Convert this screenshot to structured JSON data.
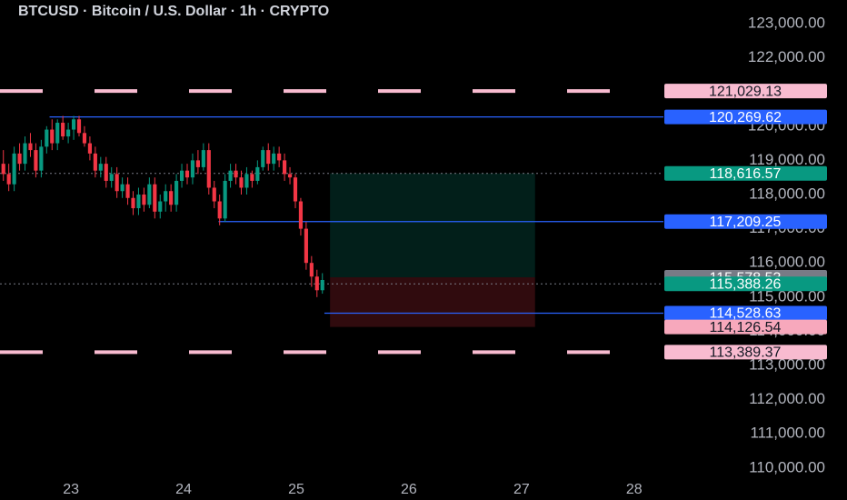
{
  "chart_data": {
    "type": "candlestick",
    "title": "BTCUSD · Bitcoin / U.S. Dollar · 1h · CRYPTO",
    "x": [
      22.4,
      22.448,
      22.496,
      22.544,
      22.592,
      22.64,
      22.688,
      22.736,
      22.784,
      22.832,
      22.88,
      22.928,
      22.976,
      23.024,
      23.072,
      23.12,
      23.168,
      23.216,
      23.264,
      23.312,
      23.36,
      23.408,
      23.456,
      23.504,
      23.552,
      23.6,
      23.648,
      23.696,
      23.744,
      23.792,
      23.84,
      23.888,
      23.936,
      23.984,
      24.032,
      24.08,
      24.128,
      24.176,
      24.224,
      24.272,
      24.32,
      24.368,
      24.416,
      24.464,
      24.512,
      24.56,
      24.608,
      24.656,
      24.704,
      24.752,
      24.8,
      24.848,
      24.896,
      24.944,
      24.992,
      25.04,
      25.088,
      25.136,
      25.184,
      25.232
    ],
    "open": [
      118900,
      118600,
      118300,
      119200,
      118900,
      119500,
      119300,
      118700,
      119400,
      119900,
      119500,
      120100,
      119700,
      119900,
      120200,
      119800,
      119500,
      119200,
      118700,
      118900,
      118400,
      118600,
      118100,
      118300,
      117900,
      117600,
      118000,
      117700,
      118300,
      117500,
      117800,
      118100,
      117700,
      118400,
      118700,
      118500,
      119000,
      118800,
      119300,
      118200,
      117800,
      117300,
      118400,
      118700,
      118500,
      118200,
      118600,
      118400,
      118800,
      119300,
      118900,
      119200,
      119000,
      118600,
      118500,
      117800,
      117000,
      116000,
      115600,
      115200
    ],
    "high": [
      119300,
      118900,
      119400,
      119500,
      119700,
      119800,
      119500,
      119600,
      120000,
      120200,
      120200,
      120300,
      120100,
      120300,
      120300,
      120000,
      119700,
      119400,
      119100,
      119100,
      118800,
      118800,
      118500,
      118500,
      118100,
      118200,
      118200,
      118500,
      118500,
      118000,
      118300,
      118300,
      118600,
      118900,
      118900,
      119200,
      119300,
      119500,
      119500,
      118400,
      118000,
      118600,
      118900,
      118900,
      118700,
      118800,
      118700,
      119000,
      119400,
      119500,
      119400,
      119400,
      119200,
      118800,
      118600,
      117900,
      117200,
      116200,
      115800,
      115700
    ],
    "low": [
      118400,
      118100,
      118100,
      118700,
      118700,
      119100,
      118500,
      118500,
      119200,
      119300,
      119300,
      119600,
      119500,
      119600,
      119700,
      119400,
      119000,
      118500,
      118500,
      118200,
      118200,
      117900,
      117900,
      117700,
      117400,
      117400,
      117500,
      117600,
      117300,
      117300,
      117500,
      117500,
      117500,
      118200,
      118300,
      118300,
      118600,
      118700,
      118000,
      117600,
      117100,
      117200,
      118200,
      118300,
      118000,
      118000,
      118200,
      118300,
      118700,
      118700,
      118700,
      118800,
      118400,
      118300,
      117600,
      116800,
      115800,
      115300,
      115000,
      115100
    ],
    "close": [
      118600,
      118300,
      119200,
      118900,
      119500,
      119300,
      118700,
      119400,
      119900,
      119500,
      120100,
      119700,
      119900,
      120200,
      119800,
      119500,
      119200,
      118700,
      118900,
      118400,
      118600,
      118100,
      118300,
      117900,
      117600,
      118000,
      117700,
      118300,
      117500,
      117800,
      118100,
      117700,
      118400,
      118700,
      118500,
      119000,
      118800,
      119300,
      118200,
      117800,
      117300,
      118400,
      118700,
      118500,
      118200,
      118600,
      118400,
      118800,
      119300,
      118900,
      119200,
      119000,
      118600,
      118500,
      117800,
      117000,
      116000,
      115600,
      115200,
      115500
    ],
    "up_color": "#089981",
    "down_color": "#f23645",
    "xlim": [
      22.37,
      28.3
    ],
    "xticks": [
      23,
      24,
      25,
      26,
      27,
      28
    ],
    "ylim": [
      109064,
      123691
    ],
    "yticks": [
      {
        "value": 110000,
        "label": "110,000.00"
      },
      {
        "value": 111000,
        "label": "111,000.00"
      },
      {
        "value": 112000,
        "label": "112,000.00"
      },
      {
        "value": 113000,
        "label": "113,000.00"
      },
      {
        "value": 114000,
        "label": "114,000.00"
      },
      {
        "value": 115000,
        "label": "115,000.00"
      },
      {
        "value": 116000,
        "label": "116,000.00"
      },
      {
        "value": 117000,
        "label": "117,000.00"
      },
      {
        "value": 118000,
        "label": "118,000.00"
      },
      {
        "value": 119000,
        "label": "119,000.00"
      },
      {
        "value": 120000,
        "label": "120,000.00"
      },
      {
        "value": 121000,
        "label": "121,000.00"
      },
      {
        "value": 122000,
        "label": "122,000.00"
      },
      {
        "value": 123000,
        "label": "123,000.00"
      }
    ],
    "levels": [
      {
        "value": 121029.13,
        "label": "121,029.13",
        "color": "#f8bbd0",
        "text_color": "#131722",
        "line": "dashed"
      },
      {
        "value": 120269.62,
        "label": "120,269.62",
        "color": "#2962ff",
        "text_color": "#ffffff",
        "line": "solid",
        "start": 22.81
      },
      {
        "value": 118616.57,
        "label": "118,616.57",
        "color": "#089981",
        "text_color": "#ffffff",
        "line": "dotted"
      },
      {
        "value": 117209.25,
        "label": "117,209.25",
        "color": "#2962ff",
        "text_color": "#ffffff",
        "line": "solid",
        "start": 24.31
      },
      {
        "value": 115578.53,
        "label": "115,578.53",
        "color": "#787b86",
        "text_color": "#ffffff",
        "line": "none"
      },
      {
        "value": 115388.26,
        "label": "115,388.26",
        "color": "#089981",
        "text_color": "#ffffff",
        "line": "dotted"
      },
      {
        "value": 114528.63,
        "label": "114,528.63",
        "color": "#2962ff",
        "text_color": "#ffffff",
        "line": "solid",
        "start": 25.25
      },
      {
        "value": 114126.54,
        "label": "114,126.54",
        "color": "#f7a8bc",
        "text_color": "#131722",
        "line": "none"
      },
      {
        "value": 113389.37,
        "label": "113,389.37",
        "color": "#f8bbd0",
        "text_color": "#131722",
        "line": "dashed"
      }
    ],
    "position_x": [
      25.3,
      27.12
    ]
  }
}
